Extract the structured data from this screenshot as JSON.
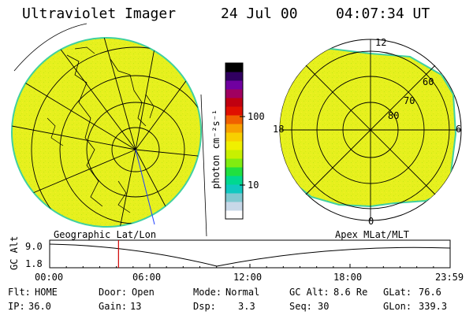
{
  "header": {
    "instrument": "Ultraviolet Imager",
    "date": "24 Jul 00",
    "time": "04:07:34 UT"
  },
  "colorbar": {
    "unit_label": "photon cm⁻²s⁻¹",
    "ticks": [
      {
        "label": "100",
        "value": 100
      },
      {
        "label": "10",
        "value": 10
      }
    ],
    "colors": [
      "#ffffff",
      "#c8d8e8",
      "#80c8d0",
      "#10c8c0",
      "#00d890",
      "#20e040",
      "#80ec10",
      "#c8f000",
      "#f0f000",
      "#f8d000",
      "#f8a000",
      "#f06000",
      "#e01000",
      "#c00010",
      "#a00060",
      "#7000a0",
      "#300060",
      "#000000"
    ]
  },
  "left_panel": {
    "projection_label": "Geographic Lat/Lon",
    "fill_color": "#e6f01e"
  },
  "right_panel": {
    "projection_label": "Apex MLat/MLT",
    "mlt_labels": {
      "top": "12",
      "left": "18",
      "right": "6",
      "bottom": "0"
    },
    "mlat_labels": [
      "60",
      "70",
      "80"
    ],
    "fill_color": "#e6f01e"
  },
  "altitude_plot": {
    "ylabel": "GC Alt",
    "yticks": [
      "9.0",
      "1.8"
    ],
    "xticks": [
      "00:00",
      "06:00",
      "12:00",
      "18:00",
      "23:59"
    ],
    "current_time_hours": 4.126,
    "marker_color": "#d00000"
  },
  "status": {
    "row1": [
      {
        "key": "Flt:",
        "value": "HOME"
      },
      {
        "key": "Door:",
        "value": "Open"
      },
      {
        "key": "Mode:",
        "value": "Normal"
      },
      {
        "key": "GC Alt:",
        "value": "8.6 Re"
      },
      {
        "key": "GLat:",
        "value": "76.6"
      }
    ],
    "row2": [
      {
        "key": "IP:",
        "value": "36.0"
      },
      {
        "key": "Gain:",
        "value": "13"
      },
      {
        "key": "Dsp:",
        "value": "3.3"
      },
      {
        "key": "Seq:",
        "value": "30"
      },
      {
        "key": "GLon:",
        "value": "339.3"
      }
    ]
  }
}
